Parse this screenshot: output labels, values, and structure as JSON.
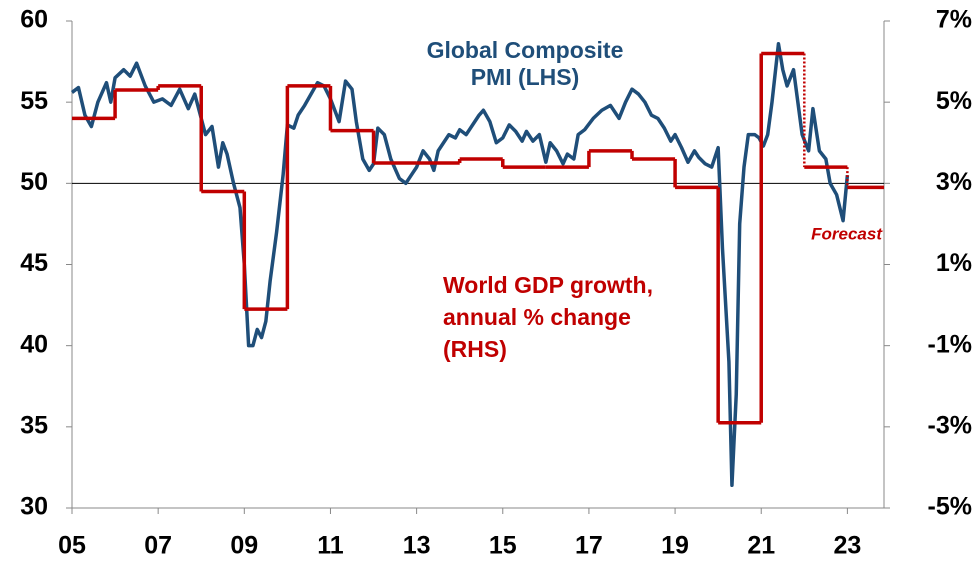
{
  "chart_data": {
    "type": "line",
    "xlim": [
      2005,
      2023.85
    ],
    "xticks": [
      {
        "value": 2005,
        "label": "05"
      },
      {
        "value": 2007,
        "label": "07"
      },
      {
        "value": 2009,
        "label": "09"
      },
      {
        "value": 2011,
        "label": "11"
      },
      {
        "value": 2013,
        "label": "13"
      },
      {
        "value": 2015,
        "label": "15"
      },
      {
        "value": 2017,
        "label": "17"
      },
      {
        "value": 2019,
        "label": "19"
      },
      {
        "value": 2021,
        "label": "21"
      },
      {
        "value": 2023,
        "label": "23"
      }
    ],
    "ylim": [
      30,
      60
    ],
    "yticks": [
      30,
      35,
      40,
      45,
      50,
      55,
      60
    ],
    "y2lim": [
      -5,
      7
    ],
    "y2ticks": [
      {
        "value": -5,
        "label": "-5%"
      },
      {
        "value": -3,
        "label": "-3%"
      },
      {
        "value": -1,
        "label": "-1%"
      },
      {
        "value": 1,
        "label": "1%"
      },
      {
        "value": 3,
        "label": "3%"
      },
      {
        "value": 5,
        "label": "5%"
      },
      {
        "value": 7,
        "label": "7%"
      }
    ],
    "reference_line": 50,
    "forecast_from": 2022,
    "forecast_label": "Forecast",
    "series": [
      {
        "name_lines": [
          "Global Composite",
          "PMI (LHS)"
        ],
        "color": "#1f4e79",
        "style": "line",
        "x": [
          2005.0,
          2005.15,
          2005.3,
          2005.45,
          2005.6,
          2005.8,
          2005.9,
          2006.0,
          2006.2,
          2006.35,
          2006.5,
          2006.7,
          2006.9,
          2007.1,
          2007.3,
          2007.5,
          2007.7,
          2007.85,
          2008.0,
          2008.1,
          2008.25,
          2008.4,
          2008.5,
          2008.6,
          2008.75,
          2008.9,
          2009.0,
          2009.1,
          2009.2,
          2009.3,
          2009.4,
          2009.5,
          2009.6,
          2009.75,
          2009.9,
          2010.0,
          2010.15,
          2010.25,
          2010.4,
          2010.55,
          2010.7,
          2010.85,
          2011.0,
          2011.2,
          2011.35,
          2011.5,
          2011.6,
          2011.75,
          2011.9,
          2012.0,
          2012.1,
          2012.25,
          2012.4,
          2012.6,
          2012.75,
          2012.9,
          2013.0,
          2013.15,
          2013.3,
          2013.4,
          2013.5,
          2013.6,
          2013.75,
          2013.9,
          2014.0,
          2014.15,
          2014.3,
          2014.45,
          2014.55,
          2014.7,
          2014.85,
          2015.0,
          2015.15,
          2015.3,
          2015.45,
          2015.55,
          2015.7,
          2015.85,
          2016.0,
          2016.1,
          2016.25,
          2016.4,
          2016.5,
          2016.65,
          2016.75,
          2016.9,
          2017.1,
          2017.3,
          2017.5,
          2017.7,
          2017.85,
          2018.0,
          2018.15,
          2018.3,
          2018.45,
          2018.6,
          2018.75,
          2018.9,
          2019.0,
          2019.15,
          2019.3,
          2019.45,
          2019.55,
          2019.7,
          2019.85,
          2020.0,
          2020.1,
          2020.25,
          2020.32,
          2020.42,
          2020.5,
          2020.6,
          2020.7,
          2020.85,
          2020.95,
          2021.05,
          2021.15,
          2021.25,
          2021.4,
          2021.5,
          2021.6,
          2021.75,
          2021.85,
          2021.95,
          2022.1,
          2022.2,
          2022.35,
          2022.5,
          2022.6,
          2022.75,
          2022.9,
          2023.0
        ],
        "values": [
          55.6,
          55.9,
          54.2,
          53.5,
          55.0,
          56.2,
          55.0,
          56.5,
          57.0,
          56.6,
          57.4,
          56.0,
          55.0,
          55.2,
          54.8,
          55.8,
          54.6,
          55.5,
          54.0,
          53.0,
          53.5,
          51.0,
          52.5,
          51.8,
          50.0,
          48.5,
          45.0,
          40.0,
          40.0,
          41.0,
          40.5,
          41.5,
          44.0,
          47.0,
          50.5,
          53.6,
          53.4,
          54.2,
          54.8,
          55.5,
          56.2,
          56.0,
          55.2,
          53.8,
          56.3,
          55.8,
          53.8,
          51.5,
          50.8,
          51.2,
          53.4,
          53.0,
          51.5,
          50.3,
          50.0,
          50.6,
          51.0,
          52.0,
          51.5,
          50.8,
          52.0,
          52.4,
          53.0,
          52.8,
          53.3,
          53.0,
          53.6,
          54.2,
          54.5,
          53.8,
          52.5,
          52.8,
          53.6,
          53.2,
          52.6,
          53.2,
          52.6,
          53.0,
          51.3,
          52.5,
          52.0,
          51.2,
          51.8,
          51.5,
          53.0,
          53.3,
          54.0,
          54.5,
          54.8,
          54.0,
          55.0,
          55.8,
          55.5,
          55.0,
          54.2,
          54.0,
          53.4,
          52.6,
          53.0,
          52.2,
          51.3,
          52.0,
          51.6,
          51.2,
          51.0,
          52.2,
          46.0,
          39.0,
          31.4,
          37.0,
          47.5,
          51.0,
          53.0,
          53.0,
          52.8,
          52.3,
          53.0,
          55.0,
          58.6,
          57.0,
          56.0,
          57.0,
          55.0,
          53.0,
          52.0,
          54.6,
          52.0,
          51.5,
          50.0,
          49.3,
          47.7,
          50.5
        ]
      },
      {
        "name_lines": [
          "World GDP growth,",
          "annual % change",
          "(RHS)"
        ],
        "color": "#c00000",
        "style": "step",
        "axis": "y2",
        "x": [
          2005,
          2006,
          2007,
          2008,
          2009,
          2010,
          2011,
          2012,
          2013,
          2014,
          2015,
          2016,
          2017,
          2018,
          2019,
          2020,
          2021,
          2022,
          2023
        ],
        "values": [
          4.6,
          5.3,
          5.4,
          2.8,
          -0.1,
          5.4,
          4.3,
          3.5,
          3.5,
          3.6,
          3.4,
          3.4,
          3.8,
          3.6,
          2.9,
          -2.9,
          6.2,
          3.4,
          2.9
        ]
      }
    ]
  }
}
